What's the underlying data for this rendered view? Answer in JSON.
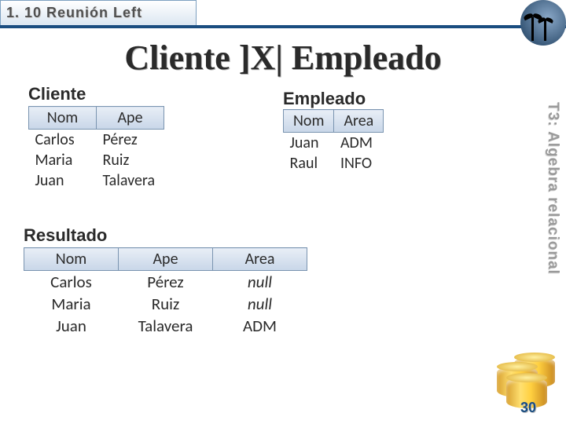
{
  "header": {
    "section": "1. 10 Reunión Left"
  },
  "main_title": "Cliente ]X| Empleado",
  "side_label": "T3: Algebra relacional",
  "page_number": "30",
  "cliente": {
    "title": "Cliente",
    "columns": [
      "Nom",
      "Ape"
    ],
    "rows": [
      [
        "Carlos",
        "Pérez"
      ],
      [
        "Maria",
        "Ruiz"
      ],
      [
        "Juan",
        "Talavera"
      ]
    ]
  },
  "empleado": {
    "title": "Empleado",
    "columns": [
      "Nom",
      "Area"
    ],
    "rows": [
      [
        "Juan",
        "ADM"
      ],
      [
        "Raul",
        "INFO"
      ]
    ]
  },
  "resultado": {
    "title": "Resultado",
    "columns": [
      "Nom",
      "Ape",
      "Area"
    ],
    "rows": [
      [
        "Carlos",
        "Pérez",
        "null"
      ],
      [
        "Maria",
        "Ruiz",
        "null"
      ],
      [
        "Juan",
        "Talavera",
        "ADM"
      ]
    ]
  },
  "colors": {
    "header_border": "#1a4d80",
    "th_bg_top": "#e8eef6",
    "th_bg_bottom": "#c8d6e8",
    "th_border": "#7a94b0",
    "text": "#2a2a2a",
    "side_text": "#9a9a9a",
    "page_num": "#1a4d80"
  },
  "fonts": {
    "header": {
      "family": "Verdana",
      "size_pt": 14,
      "weight": "bold"
    },
    "main_title": {
      "family": "Georgia",
      "size_pt": 33,
      "weight": "bold"
    },
    "table_title": {
      "family": "Verdana",
      "size_pt": 17,
      "weight": "bold"
    },
    "cell": {
      "family": "Calibri",
      "size_pt": 15
    }
  }
}
